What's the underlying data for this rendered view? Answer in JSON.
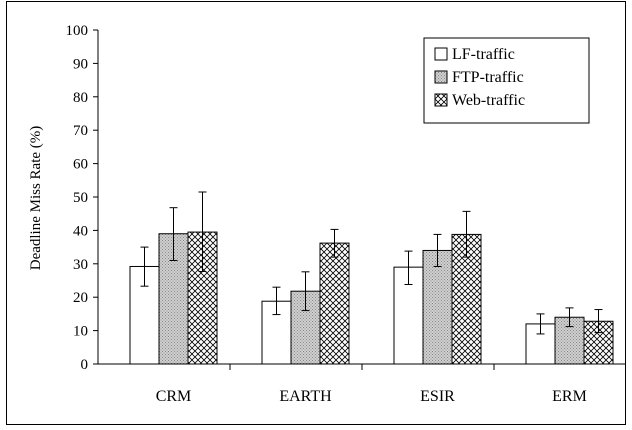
{
  "chart_data": {
    "type": "bar",
    "title": "",
    "xlabel": "",
    "ylabel": "Deadline Miss Rate (%)",
    "ylim": [
      0,
      100
    ],
    "yticks": [
      0,
      10,
      20,
      30,
      40,
      50,
      60,
      70,
      80,
      90,
      100
    ],
    "grid": false,
    "legend_position": "top-right",
    "categories": [
      "CRM",
      "EARTH",
      "ESIR",
      "ERM"
    ],
    "series": [
      {
        "name": "LF-traffic",
        "pattern": "white",
        "values": [
          29.2,
          18.8,
          29.0,
          12.0
        ],
        "err_low": [
          23.3,
          14.8,
          23.8,
          9.0
        ],
        "err_high": [
          35.0,
          23.0,
          33.8,
          15.0
        ]
      },
      {
        "name": "FTP-traffic",
        "pattern": "dotted",
        "values": [
          39.0,
          21.8,
          34.0,
          14.0
        ],
        "err_low": [
          31.0,
          16.0,
          29.2,
          11.2
        ],
        "err_high": [
          46.8,
          27.6,
          38.8,
          16.8
        ]
      },
      {
        "name": "Web-traffic",
        "pattern": "crosshatch",
        "values": [
          39.5,
          36.2,
          38.8,
          12.8
        ],
        "err_low": [
          27.7,
          32.0,
          32.0,
          9.4
        ],
        "err_high": [
          51.5,
          40.3,
          45.7,
          16.3
        ]
      }
    ],
    "colors": {
      "bar_edge": "#000000",
      "dotted_fill": "#c8c8c8",
      "hatch_line": "#000000"
    }
  }
}
